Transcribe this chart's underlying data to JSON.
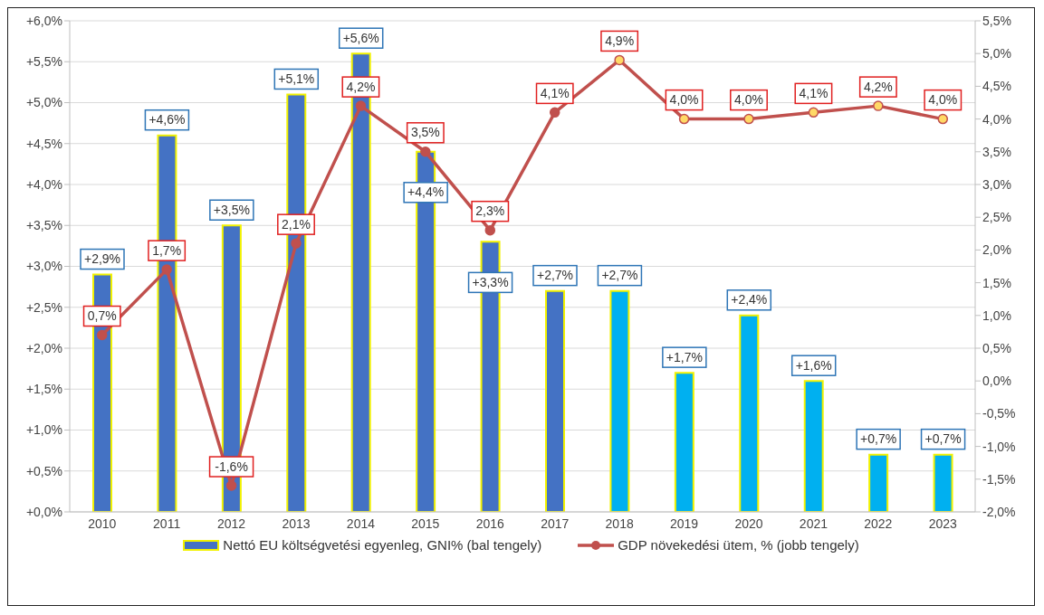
{
  "chart_data": {
    "type": "bar",
    "categories": [
      "2010",
      "2011",
      "2012",
      "2013",
      "2014",
      "2015",
      "2016",
      "2017",
      "2018",
      "2019",
      "2020",
      "2021",
      "2022",
      "2023"
    ],
    "series": [
      {
        "name": "Nettó EU költségvetési egyenleg, GNI% (bal tengely)",
        "color": "#4472c4",
        "colors": [
          "#4472c4",
          "#4472c4",
          "#4472c4",
          "#4472c4",
          "#4472c4",
          "#4472c4",
          "#4472c4",
          "#4472c4",
          "#00b0f0",
          "#00b0f0",
          "#00b0f0",
          "#00b0f0",
          "#00b0f0",
          "#00b0f0"
        ],
        "values": [
          2.9,
          4.6,
          3.5,
          5.1,
          5.6,
          4.4,
          3.3,
          2.7,
          2.7,
          1.7,
          2.4,
          1.6,
          0.7,
          0.7
        ],
        "value_labels": [
          "+2,9%",
          "+4,6%",
          "+3,5%",
          "+5,1%",
          "+5,6%",
          "+4,4%",
          "+3,3%",
          "+2,7%",
          "+2,7%",
          "+1,7%",
          "+2,4%",
          "+1,6%",
          "+0,7%",
          "+0,7%"
        ]
      },
      {
        "type": "line",
        "axis": "y2",
        "name": "GDP  növekedési ütem, % (jobb tengely)",
        "color": "#c0504d",
        "colors": [
          "#c0504d",
          "#c0504d",
          "#c0504d",
          "#c0504d",
          "#c0504d",
          "#c0504d",
          "#c0504d",
          "#c0504d",
          "#ffd966",
          "#ffd966",
          "#ffd966",
          "#ffd966",
          "#ffd966",
          "#ffd966"
        ],
        "values": [
          0.7,
          1.7,
          -1.6,
          2.1,
          4.2,
          3.5,
          2.3,
          4.1,
          4.9,
          4.0,
          4.0,
          4.1,
          4.2,
          4.0
        ],
        "value_labels": [
          "0,7%",
          "1,7%",
          "-1,6%",
          "2,1%",
          "4,2%",
          "3,5%",
          "2,3%",
          "4,1%",
          "4,9%",
          "4,0%",
          "4,0%",
          "4,1%",
          "4,2%",
          "4,0%"
        ]
      }
    ],
    "ylim": [
      0,
      6
    ],
    "yticks": [
      {
        "value": 0,
        "label": "+0,0%"
      },
      {
        "value": 0.5,
        "label": "+0,5%"
      },
      {
        "value": 1,
        "label": "+1,0%"
      },
      {
        "value": 1.5,
        "label": "+1,5%"
      },
      {
        "value": 2,
        "label": "+2,0%"
      },
      {
        "value": 2.5,
        "label": "+2,5%"
      },
      {
        "value": 3,
        "label": "+3,0%"
      },
      {
        "value": 3.5,
        "label": "+3,5%"
      },
      {
        "value": 4,
        "label": "+4,0%"
      },
      {
        "value": 4.5,
        "label": "+4,5%"
      },
      {
        "value": 5,
        "label": "+5,0%"
      },
      {
        "value": 5.5,
        "label": "+5,5%"
      },
      {
        "value": 6,
        "label": "+6,0%"
      }
    ],
    "y2lim": [
      -2,
      5.5
    ],
    "y2ticks": [
      {
        "value": -2,
        "label": "-2,0%"
      },
      {
        "value": -1.5,
        "label": "-1,5%"
      },
      {
        "value": -1,
        "label": "-1,0%"
      },
      {
        "value": -0.5,
        "label": "-0,5%"
      },
      {
        "value": 0,
        "label": "0,0%"
      },
      {
        "value": 0.5,
        "label": "0,5%"
      },
      {
        "value": 1,
        "label": "1,0%"
      },
      {
        "value": 1.5,
        "label": "1,5%"
      },
      {
        "value": 2,
        "label": "2,0%"
      },
      {
        "value": 2.5,
        "label": "2,5%"
      },
      {
        "value": 3,
        "label": "3,0%"
      },
      {
        "value": 3.5,
        "label": "3,5%"
      },
      {
        "value": 4,
        "label": "4,0%"
      },
      {
        "value": 4.5,
        "label": "4,5%"
      },
      {
        "value": 5,
        "label": "5,0%"
      },
      {
        "value": 5.5,
        "label": "5,5%"
      }
    ],
    "grid": "y",
    "legend": "bottom",
    "marker": "circle"
  }
}
